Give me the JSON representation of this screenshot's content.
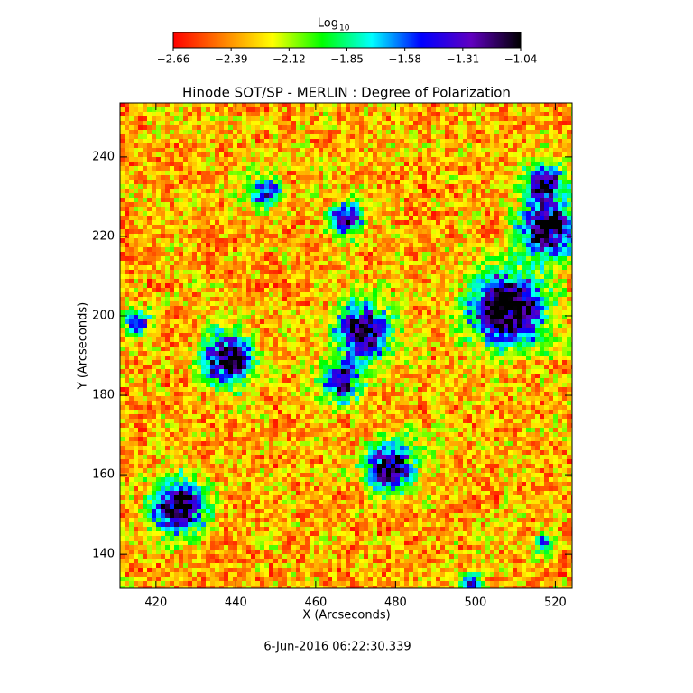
{
  "chart_data": {
    "type": "heatmap",
    "title": "Hinode SOT/SP - MERLIN : Degree of Polarization",
    "x_label": "X (Arcseconds)",
    "y_label": "Y (Arcseconds)",
    "xlim": [
      411,
      524.2
    ],
    "xticks": [
      420,
      440,
      460,
      480,
      500,
      520
    ],
    "ylim": [
      131.4,
      253.6
    ],
    "yticks": [
      140,
      160,
      180,
      200,
      220,
      240
    ],
    "colorbar": {
      "label": "Log",
      "label_subscript": "10",
      "clim": [
        -2.66,
        -1.04
      ],
      "ticks": [
        {
          "value": -2.66,
          "label": "−2.66"
        },
        {
          "value": -2.39,
          "label": "−2.39"
        },
        {
          "value": -2.12,
          "label": "−2.12"
        },
        {
          "value": -1.85,
          "label": "−1.85"
        },
        {
          "value": -1.58,
          "label": "−1.58"
        },
        {
          "value": -1.31,
          "label": "−1.31"
        },
        {
          "value": -1.04,
          "label": "−1.04"
        }
      ],
      "colormap": [
        "#ff0000",
        "#ff8000",
        "#ffff00",
        "#00ff00",
        "#00ffff",
        "#0000ff",
        "#6000c0",
        "#000000"
      ]
    },
    "footer": "6-Jun-2016 06:22:30.339"
  }
}
